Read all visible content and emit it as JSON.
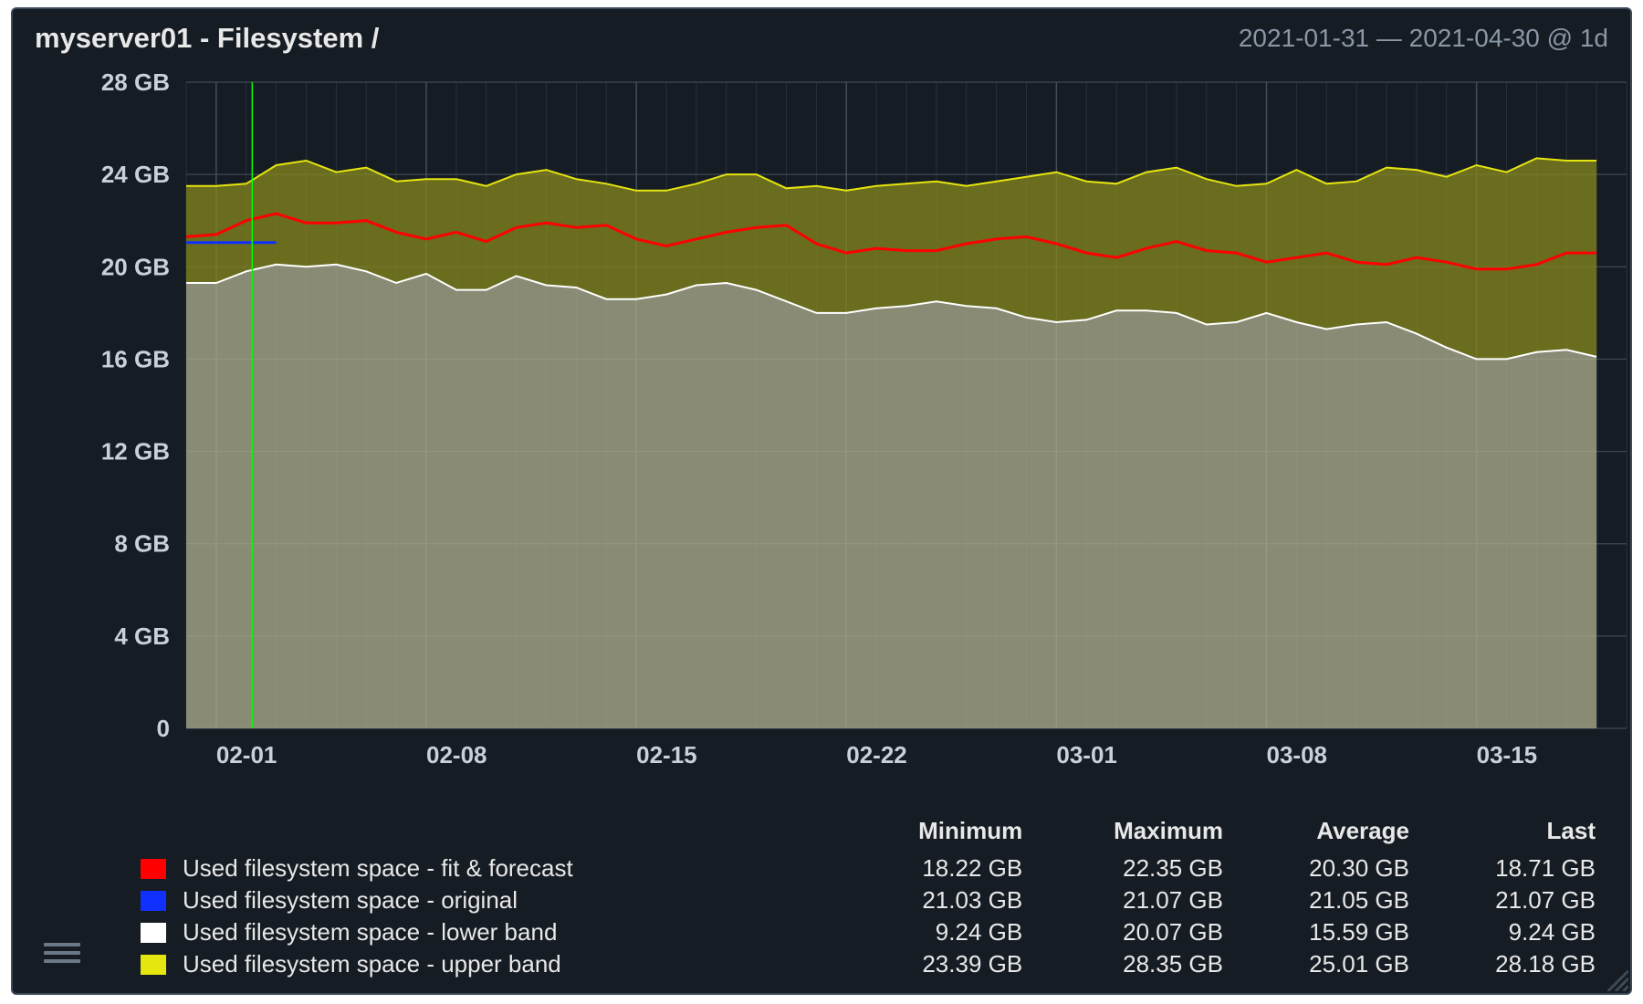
{
  "header": {
    "title": "myserver01 - Filesystem /",
    "range": "2021-01-31 — 2021-04-30 @ 1d"
  },
  "chart": {
    "type": "area-line",
    "background": "#161c23",
    "grid_color": "#3f4a56",
    "grid_major_color": "#48535f",
    "axis_font_size": 26,
    "axis_color": "#c8d0d8",
    "axis_label_color": "#c8d0d8",
    "ylim": [
      0,
      28
    ],
    "yticks": [
      0,
      4,
      8,
      12,
      16,
      20,
      24,
      28
    ],
    "ytick_labels": [
      "0",
      "4 GB",
      "8 GB",
      "12 GB",
      "16 GB",
      "20 GB",
      "24 GB",
      "28 GB"
    ],
    "xlim": [
      0,
      48
    ],
    "xticks": [
      1,
      8,
      15,
      22,
      29,
      36,
      43
    ],
    "xtick_labels": [
      "02-01",
      "02-08",
      "02-15",
      "02-22",
      "03-01",
      "03-08",
      "03-15"
    ],
    "cursor_x": 2.2,
    "cursor_color": "#00ff00",
    "series": {
      "upper": {
        "color": "#e5e510",
        "fill": "rgba(135,135,30,0.75)",
        "line_width": 2,
        "data": [
          23.5,
          23.5,
          23.6,
          24.4,
          24.6,
          24.1,
          24.3,
          23.7,
          23.8,
          23.8,
          23.5,
          24.0,
          24.2,
          23.8,
          23.6,
          23.3,
          23.3,
          23.6,
          24.0,
          24.0,
          23.4,
          23.5,
          23.3,
          23.5,
          23.6,
          23.7,
          23.5,
          23.7,
          23.9,
          24.1,
          23.7,
          23.6,
          24.1,
          24.3,
          23.8,
          23.5,
          23.6,
          24.2,
          23.6,
          23.7,
          24.3,
          24.2,
          23.9,
          24.4,
          24.1,
          24.7,
          24.6,
          24.6
        ]
      },
      "fit": {
        "color": "#ff0000",
        "line_width": 3,
        "data": [
          21.3,
          21.4,
          22.0,
          22.3,
          21.9,
          21.9,
          22.0,
          21.5,
          21.2,
          21.5,
          21.1,
          21.7,
          21.9,
          21.7,
          21.8,
          21.2,
          20.9,
          21.2,
          21.5,
          21.7,
          21.8,
          21.0,
          20.6,
          20.8,
          20.7,
          20.7,
          21.0,
          21.2,
          21.3,
          21.0,
          20.6,
          20.4,
          20.8,
          21.1,
          20.7,
          20.6,
          20.2,
          20.4,
          20.6,
          20.2,
          20.1,
          20.4,
          20.2,
          19.9,
          19.9,
          20.1,
          20.6,
          20.6
        ]
      },
      "lower": {
        "color": "#ffffff",
        "fill": "rgba(170,170,140,0.78)",
        "line_width": 2,
        "data": [
          19.3,
          19.3,
          19.8,
          20.1,
          20.0,
          20.1,
          19.8,
          19.3,
          19.7,
          19.0,
          19.0,
          19.6,
          19.2,
          19.1,
          18.6,
          18.6,
          18.8,
          19.2,
          19.3,
          19.0,
          18.5,
          18.0,
          18.0,
          18.2,
          18.3,
          18.5,
          18.3,
          18.2,
          17.8,
          17.6,
          17.7,
          18.1,
          18.1,
          18.0,
          17.5,
          17.6,
          18.0,
          17.6,
          17.3,
          17.5,
          17.6,
          17.1,
          16.5,
          16.0,
          16.0,
          16.3,
          16.4,
          16.1
        ]
      },
      "original": {
        "color": "#1030ff",
        "line_width": 3,
        "x0": 0,
        "x1": 3,
        "y": 21.05
      }
    }
  },
  "legend": {
    "columns": [
      "",
      "Minimum",
      "Maximum",
      "Average",
      "Last"
    ],
    "rows": [
      {
        "swatch": "#ff0000",
        "name": "Used filesystem space - fit & forecast",
        "min": "18.22 GB",
        "max": "22.35 GB",
        "avg": "20.30 GB",
        "last": "18.71 GB"
      },
      {
        "swatch": "#1030ff",
        "name": "Used filesystem space - original",
        "min": "21.03 GB",
        "max": "21.07 GB",
        "avg": "21.05 GB",
        "last": "21.07 GB"
      },
      {
        "swatch": "#ffffff",
        "name": "Used filesystem space - lower band",
        "min": "9.24 GB",
        "max": "20.07 GB",
        "avg": "15.59 GB",
        "last": "9.24 GB"
      },
      {
        "swatch": "#e5e510",
        "name": "Used filesystem space - upper band",
        "min": "23.39 GB",
        "max": "28.35 GB",
        "avg": "25.01 GB",
        "last": "28.18 GB"
      }
    ]
  }
}
